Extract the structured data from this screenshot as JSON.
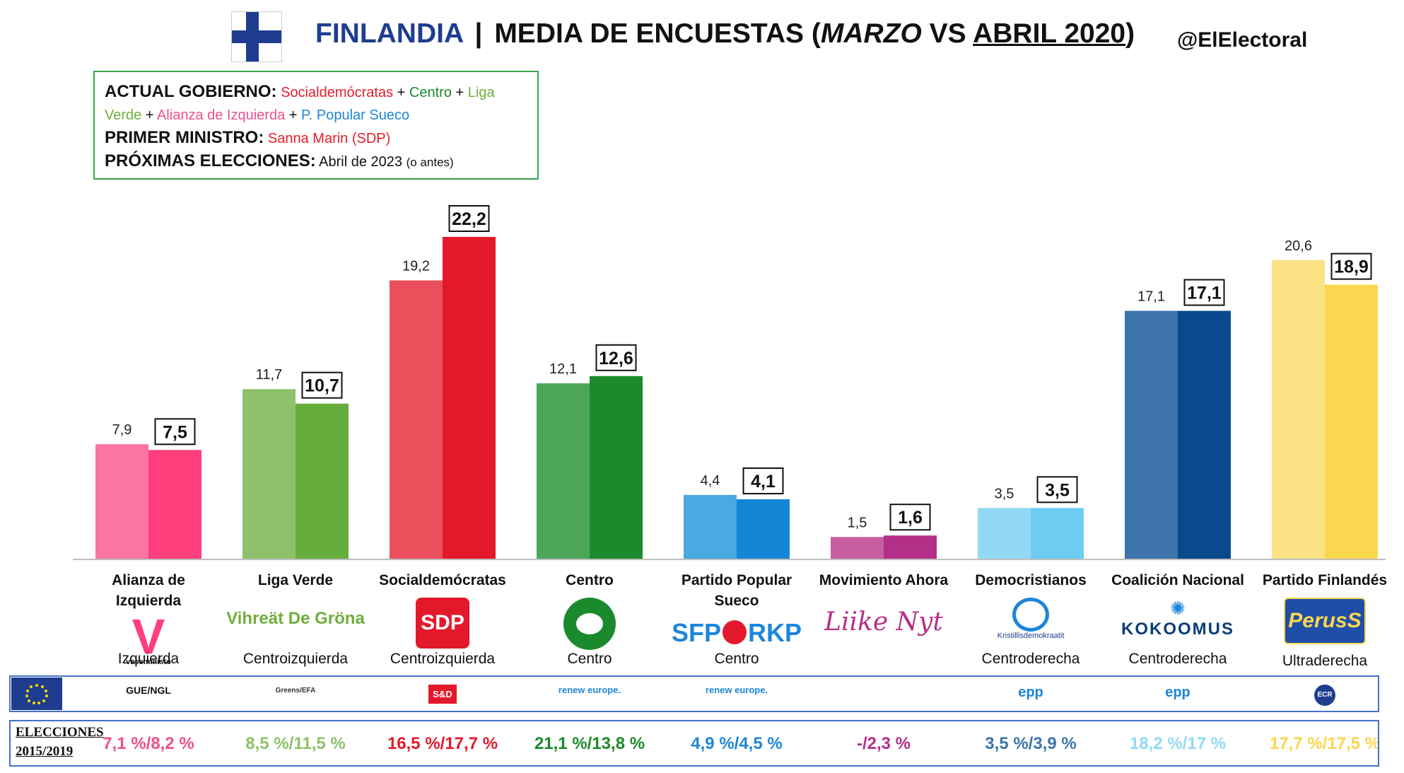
{
  "header": {
    "country": "FINLANDIA",
    "separator": "|",
    "subtitle_pre": "MEDIA DE ENCUESTAS (",
    "subtitle_m1": "MARZO",
    "subtitle_vs": " VS ",
    "subtitle_m2": "ABRIL 2020",
    "subtitle_post": ")",
    "handle": "@ElElectoral"
  },
  "info": {
    "gov_label": "ACTUAL GOBIERNO:",
    "gov_p1": "Socialdemócratas",
    "gov_p2": "Centro",
    "gov_p3a": "Liga",
    "gov_p3b": "Verde",
    "gov_p4": "Alianza de Izquierda",
    "gov_p5": "P. Popular Sueco",
    "plus": "+",
    "pm_label": "PRIMER MINISTRO:",
    "pm_value": "Sanna Marin (SDP)",
    "elec_label": "PRÓXIMAS ELECCIONES:",
    "elec_value": "Abril de 2023",
    "elec_note": "(o antes)"
  },
  "chart_data": {
    "type": "bar",
    "categories": [
      "Alianza de Izquierda",
      "Liga Verde",
      "Socialdemócratas",
      "Centro",
      "Partido Popular Sueco",
      "Movimiento Ahora",
      "Democristianos",
      "Coalición Nacional",
      "Partido Finlandés"
    ],
    "series": [
      {
        "values": [
          7.9,
          11.7,
          19.2,
          12.1,
          4.4,
          1.5,
          3.5,
          17.1,
          20.6
        ]
      },
      {
        "values": [
          7.5,
          10.7,
          22.2,
          12.6,
          4.1,
          1.6,
          3.5,
          17.1,
          18.9
        ]
      }
    ],
    "labels_prev": [
      "7,9",
      "11,7",
      "19,2",
      "12,1",
      "4,4",
      "1,5",
      "3,5",
      "17,1",
      "20,6"
    ],
    "labels_curr": [
      "7,5",
      "10,7",
      "22,2",
      "12,6",
      "4,1",
      "1,6",
      "3,5",
      "17,1",
      "18,9"
    ],
    "colors_prev": [
      "#fb74a4",
      "#8dc26b",
      "#ea4f5b",
      "#4ca65a",
      "#4aa8e2",
      "#c95fa2",
      "#93d9f5",
      "#3d74aa",
      "#fbe284"
    ],
    "colors_curr": [
      "#fe3f7c",
      "#66ae3b",
      "#e3192b",
      "#1b8a2c",
      "#1386d6",
      "#b42f87",
      "#6ccdf1",
      "#0a4a8c",
      "#fbd64f"
    ],
    "ylim": [
      0,
      22.2
    ]
  },
  "parties": [
    {
      "name": "Alianza de Izquierda",
      "ideology": "Izquierda",
      "logo": "vasemmisto",
      "logo_text": "vasemmisto",
      "group": "GUE/NGL",
      "result": "7,1 %/8,2 %",
      "result_color": "#ef4f8b"
    },
    {
      "name": "Liga Verde",
      "ideology": "Centroizquierda",
      "logo": "vihreat",
      "logo_text": "Vihreät De Gröna",
      "group": "Greens/EFA",
      "result": "8,5 %/11,5 %",
      "result_color": "#8dc26b"
    },
    {
      "name": "Socialdemócratas",
      "ideology": "Centroizquierda",
      "logo": "sdp",
      "logo_text": "SDP",
      "group": "S&D",
      "result": "16,5 %/17,7 %",
      "result_color": "#e3192b"
    },
    {
      "name": "Centro",
      "ideology": "Centro",
      "logo": "keskusta",
      "logo_text": "",
      "group": "renew europe.",
      "result": "21,1 %/13,8 %",
      "result_color": "#1b8a2c"
    },
    {
      "name": "Partido Popular Sueco",
      "ideology": "Centro",
      "logo": "sfp-rkp",
      "logo_text": "SFP RKP",
      "group": "renew europe.",
      "result": "4,9 %/4,5 %",
      "result_color": "#1e86d8"
    },
    {
      "name": "Movimiento Ahora",
      "ideology": "",
      "logo": "liike-nyt",
      "logo_text": "Liike Nyt",
      "group": "",
      "result": "-/2,3 %",
      "result_color": "#b42f87"
    },
    {
      "name": "Democristianos",
      "ideology": "Centroderecha",
      "logo": "kd",
      "logo_text": "Kristillisdemokraatit",
      "group": "epp",
      "result": "3,5 %/3,9 %",
      "result_color": "#3d74aa"
    },
    {
      "name": "Coalición Nacional",
      "ideology": "Centroderecha",
      "logo": "kokoomus",
      "logo_text": "KOKOOMUS",
      "group": "epp",
      "result": "18,2 %/17 %",
      "result_color": "#93d9f5"
    },
    {
      "name": "Partido Finlandés",
      "ideology": "Ultraderecha",
      "logo": "perus",
      "logo_text": "PerusS",
      "group": "ECR",
      "result": "17,7 %/17,5 %",
      "result_color": "#fbd64f"
    }
  ],
  "footer": {
    "elections_label_1": "ELECCIONES",
    "elections_label_2": "2015/2019"
  }
}
